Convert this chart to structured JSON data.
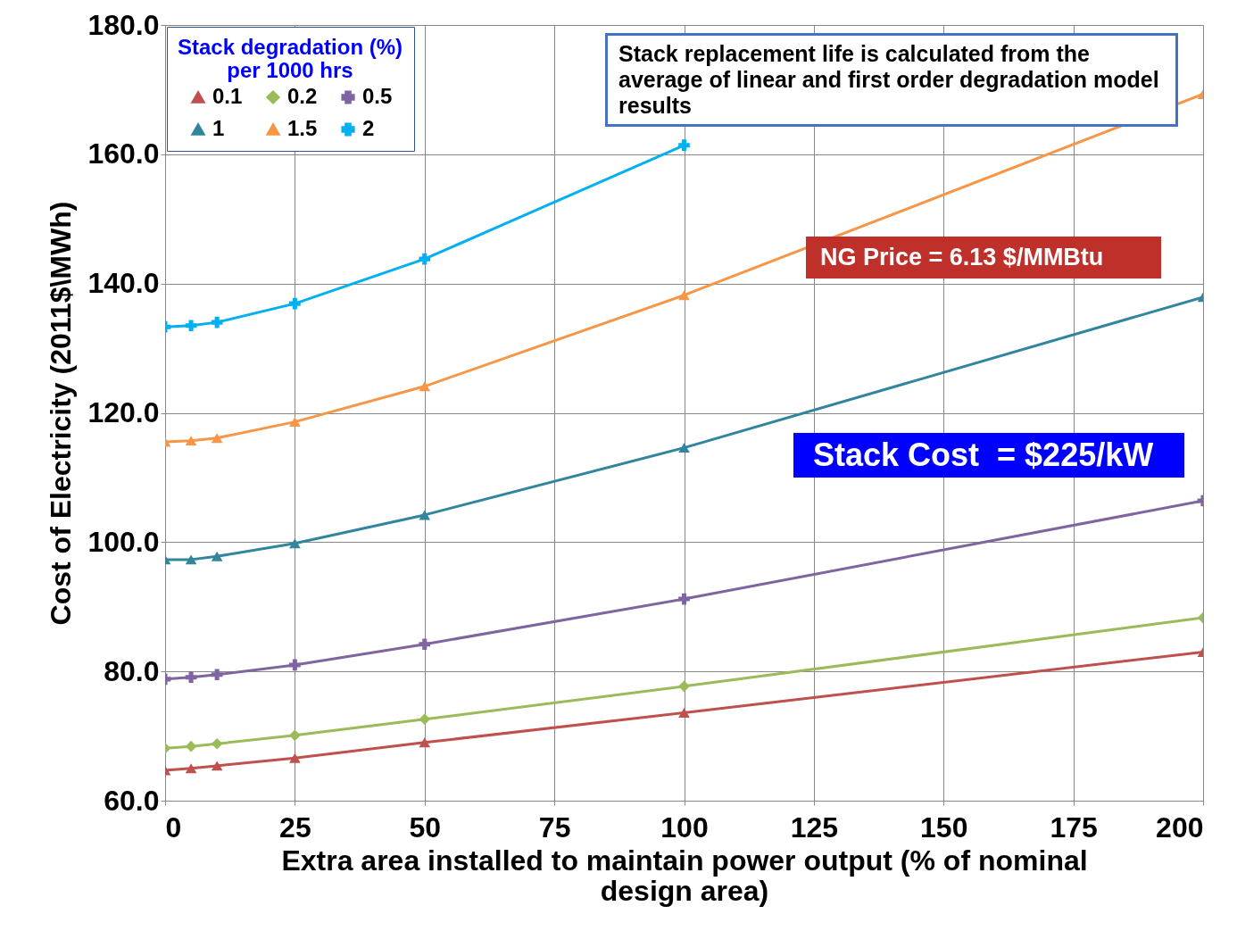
{
  "chart_data": {
    "type": "line",
    "xlabel": "Extra area installed to maintain power output (% of nominal design area)",
    "ylabel": "Cost of Electricity (2011$\\MWh)",
    "legend_title": "Stack degradation (%)\nper 1000 hrs",
    "x": [
      0,
      5,
      10,
      25,
      50,
      100,
      200
    ],
    "series": [
      {
        "name": "0.1",
        "color": "#c0504d",
        "marker": "triangle",
        "values": [
          64.7,
          65.0,
          65.4,
          66.6,
          69.0,
          73.6,
          83.0
        ]
      },
      {
        "name": "0.2",
        "color": "#9bbb59",
        "marker": "diamond",
        "values": [
          68.1,
          68.4,
          68.8,
          70.1,
          72.6,
          77.7,
          88.3
        ]
      },
      {
        "name": "0.5",
        "color": "#8064a2",
        "marker": "cross",
        "values": [
          78.8,
          79.1,
          79.5,
          81.0,
          84.2,
          91.2,
          106.4
        ]
      },
      {
        "name": "1",
        "color": "#31859c",
        "marker": "triangle",
        "values": [
          97.3,
          97.3,
          97.8,
          99.8,
          104.2,
          114.6,
          137.9
        ]
      },
      {
        "name": "1.5",
        "color": "#f79646",
        "marker": "triangle",
        "values": [
          115.5,
          115.7,
          116.1,
          118.6,
          124.1,
          138.2,
          169.3
        ]
      },
      {
        "name": "2",
        "color": "#00b0f0",
        "marker": "cross",
        "values": [
          133.3,
          133.5,
          134.0,
          136.9,
          143.8,
          161.4,
          null
        ]
      }
    ],
    "xlim": [
      0,
      200
    ],
    "xticks": [
      0,
      25,
      50,
      75,
      100,
      125,
      150,
      175,
      200
    ],
    "ylim": [
      60,
      180
    ],
    "yticks": [
      {
        "value": 60,
        "label": "60.0"
      },
      {
        "value": 80,
        "label": "80.0"
      },
      {
        "value": 100,
        "label": "100.0"
      },
      {
        "value": 120,
        "label": "120.0"
      },
      {
        "value": 140,
        "label": "140.0"
      },
      {
        "value": 160,
        "label": "160.0"
      },
      {
        "value": 180,
        "label": "180.0"
      }
    ],
    "grid": true,
    "legend": "top left",
    "annotations": [
      "Stack replacement life is calculated from the average of linear and first order degradation model results",
      "NG Price = 6.13 $/MMBtu",
      "Stack Cost  = $225/kW"
    ]
  }
}
